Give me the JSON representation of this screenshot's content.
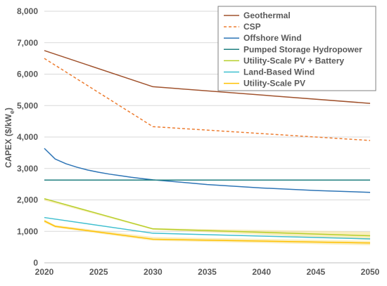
{
  "chart_data": {
    "type": "line",
    "ylabel_main": "CAPEX ($/kW",
    "ylabel_sub": "e",
    "ylabel_tail": ")",
    "xlabel": "",
    "xlim": [
      2020,
      2050
    ],
    "ylim": [
      0,
      8000
    ],
    "x_ticks": [
      2020,
      2025,
      2030,
      2035,
      2040,
      2045,
      2050
    ],
    "x_tick_labels": [
      "2020",
      "2025",
      "2030",
      "2035",
      "2040",
      "2045",
      "2050"
    ],
    "y_ticks": [
      0,
      1000,
      2000,
      3000,
      4000,
      5000,
      6000,
      7000,
      8000
    ],
    "y_tick_labels": [
      "0",
      "1,000",
      "2,000",
      "3,000",
      "4,000",
      "5,000",
      "6,000",
      "7,000",
      "8,000"
    ],
    "grid": "horizontal",
    "legend_position": "top-right",
    "series": [
      {
        "name": "Geothermal",
        "color": "#a0522d",
        "style": "solid",
        "points": [
          [
            2020,
            6750
          ],
          [
            2030,
            5600
          ],
          [
            2050,
            5070
          ]
        ]
      },
      {
        "name": "CSP",
        "color": "#ed7d31",
        "style": "dashed",
        "points": [
          [
            2020,
            6500
          ],
          [
            2030,
            4330
          ],
          [
            2050,
            3890
          ]
        ]
      },
      {
        "name": "Offshore Wind",
        "color": "#2e75b6",
        "style": "solid",
        "points": [
          [
            2020,
            3640
          ],
          [
            2021,
            3300
          ],
          [
            2022,
            3150
          ],
          [
            2023,
            3040
          ],
          [
            2024,
            2950
          ],
          [
            2025,
            2880
          ],
          [
            2026,
            2820
          ],
          [
            2027,
            2770
          ],
          [
            2028,
            2720
          ],
          [
            2029,
            2680
          ],
          [
            2030,
            2640
          ],
          [
            2035,
            2490
          ],
          [
            2040,
            2380
          ],
          [
            2045,
            2300
          ],
          [
            2050,
            2240
          ]
        ]
      },
      {
        "name": "Pumped Storage Hydropower",
        "color": "#1f7f7f",
        "style": "solid",
        "points": [
          [
            2020,
            2630
          ],
          [
            2050,
            2630
          ]
        ]
      },
      {
        "name": "Utility-Scale PV + Battery",
        "color": "#b6cf2a",
        "style": "solid",
        "points": [
          [
            2020,
            2040
          ],
          [
            2030,
            1080
          ],
          [
            2050,
            860
          ]
        ]
      },
      {
        "name": "Land-Based Wind",
        "color": "#3fbfcf",
        "style": "solid",
        "points": [
          [
            2020,
            1440
          ],
          [
            2030,
            940
          ],
          [
            2050,
            760
          ]
        ]
      },
      {
        "name": "Utility-Scale PV",
        "color": "#ffc000",
        "style": "solid",
        "points": [
          [
            2020,
            1330
          ],
          [
            2021,
            1160
          ],
          [
            2030,
            750
          ],
          [
            2050,
            630
          ]
        ]
      }
    ],
    "bands": [
      {
        "color": "#f6e08a",
        "upper": [
          [
            2020,
            2040
          ],
          [
            2030,
            1100
          ],
          [
            2050,
            990
          ]
        ],
        "lower": [
          [
            2020,
            1980
          ],
          [
            2030,
            1050
          ],
          [
            2050,
            730
          ]
        ]
      },
      {
        "color": "#f6e08a",
        "upper": [
          [
            2020,
            1380
          ],
          [
            2021,
            1200
          ],
          [
            2030,
            820
          ],
          [
            2050,
            700
          ]
        ],
        "lower": [
          [
            2020,
            1280
          ],
          [
            2021,
            1120
          ],
          [
            2030,
            700
          ],
          [
            2050,
            560
          ]
        ]
      }
    ]
  }
}
